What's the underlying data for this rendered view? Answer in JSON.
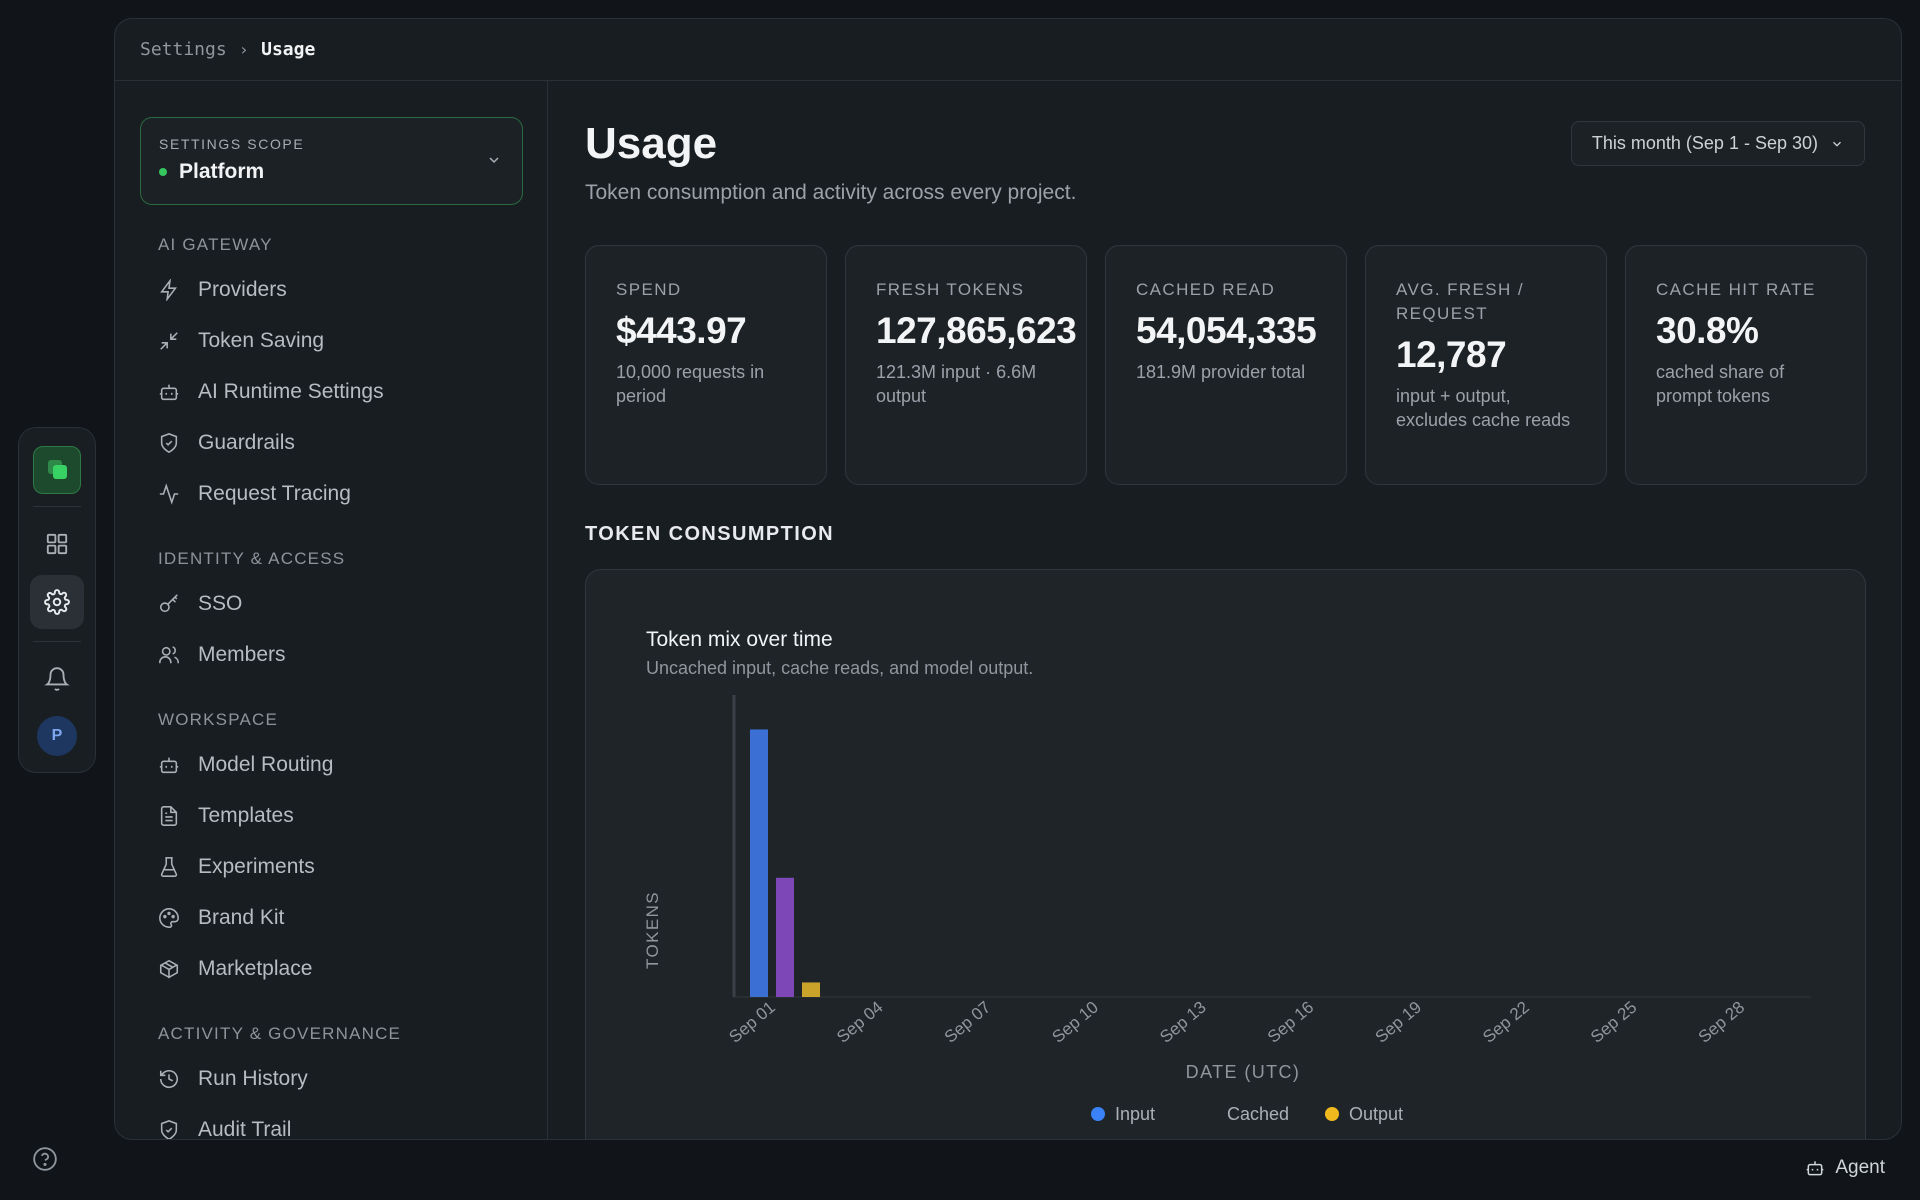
{
  "rail": {
    "items": [
      "app-logo",
      "grid-icon",
      "settings-icon",
      "bell-icon"
    ],
    "avatar_initial": "P"
  },
  "breadcrumb": {
    "parent": "Settings",
    "current": "Usage"
  },
  "scope": {
    "label": "SETTINGS SCOPE",
    "value": "Platform",
    "status_color": "#36c65e"
  },
  "nav": {
    "ai_gateway": {
      "heading": "AI GATEWAY",
      "items": [
        {
          "label": "Providers",
          "icon": "bolt-icon"
        },
        {
          "label": "Token Saving",
          "icon": "minimize-icon"
        },
        {
          "label": "AI Runtime Settings",
          "icon": "bot-icon"
        },
        {
          "label": "Guardrails",
          "icon": "shield-check-icon"
        },
        {
          "label": "Request Tracing",
          "icon": "activity-icon"
        }
      ]
    },
    "identity": {
      "heading": "IDENTITY & ACCESS",
      "items": [
        {
          "label": "SSO",
          "icon": "key-icon"
        },
        {
          "label": "Members",
          "icon": "users-icon"
        }
      ]
    },
    "workspace": {
      "heading": "WORKSPACE",
      "items": [
        {
          "label": "Model Routing",
          "icon": "bot-icon"
        },
        {
          "label": "Templates",
          "icon": "file-text-icon"
        },
        {
          "label": "Experiments",
          "icon": "flask-icon"
        },
        {
          "label": "Brand Kit",
          "icon": "palette-icon"
        },
        {
          "label": "Marketplace",
          "icon": "package-icon"
        }
      ]
    },
    "activity": {
      "heading": "ACTIVITY & GOVERNANCE",
      "items": [
        {
          "label": "Run History",
          "icon": "history-icon"
        },
        {
          "label": "Audit Trail",
          "icon": "shield-check-icon"
        }
      ]
    }
  },
  "page": {
    "title": "Usage",
    "subtitle": "Token consumption and activity across every project.",
    "range": "This month (Sep 1 - Sep 30)"
  },
  "cards": [
    {
      "key": "SPEND",
      "value": "$443.97",
      "desc": "10,000 requests in period"
    },
    {
      "key": "FRESH TOKENS",
      "value": "127,865,623",
      "desc": "121.3M input · 6.6M output"
    },
    {
      "key": "CACHED READ",
      "value": "54,054,335",
      "desc": "181.9M provider total"
    },
    {
      "key": "AVG. FRESH / REQUEST",
      "value": "12,787",
      "desc": "input + output, excludes cache reads"
    },
    {
      "key": "CACHE HIT RATE",
      "value": "30.8%",
      "desc": "cached share of prompt tokens"
    }
  ],
  "section_title": "TOKEN CONSUMPTION",
  "chart_data": {
    "type": "bar",
    "title": "Token mix over time",
    "subtitle": "Uncached input, cache reads, and model output.",
    "xlabel": "DATE (UTC)",
    "ylabel": "TOKENS",
    "x_tick_labels": [
      "Sep 01",
      "Sep 04",
      "Sep 07",
      "Sep 10",
      "Sep 13",
      "Sep 16",
      "Sep 19",
      "Sep 22",
      "Sep 25",
      "Sep 28"
    ],
    "categories": [
      "Sep 01"
    ],
    "series": [
      {
        "name": "Input",
        "color": "#3b6fd4",
        "values": [
          121300000
        ]
      },
      {
        "name": "Cached",
        "color": "#7e47b8",
        "values": [
          54054335
        ]
      },
      {
        "name": "Output",
        "color": "#c9a32a",
        "values": [
          6600000
        ]
      }
    ],
    "ylim": [
      0,
      136000000
    ],
    "legend": "bottom-center",
    "legend_marker_colors": {
      "Input": "#3b82f6",
      "Cached": "#1f2428",
      "Output": "#f0b91e"
    }
  },
  "agent_label": "Agent"
}
